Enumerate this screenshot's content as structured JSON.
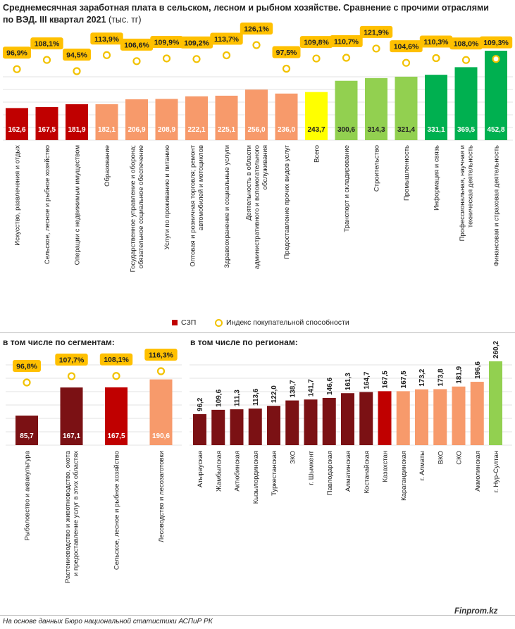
{
  "header": {
    "title": "Среднемесячная заработная плата в сельском, лесном и рыбном хозяйстве. Сравнение с прочими отраслями по ВЭД. III квартал 2021",
    "unit": "(тыс. тг)"
  },
  "legend": {
    "bar_label": "СЗП",
    "index_label": "Индекс покупательной способности"
  },
  "segments_title": "в том числе по сегментам:",
  "regions_title": "в том числе по регионам:",
  "footer": {
    "source": "На основе данных Бюро национальной статистики АСПиР РК",
    "brand": "Finprom.kz"
  },
  "colors": {
    "dark_red": "#7b1114",
    "red": "#c00000",
    "salmon": "#f79a6b",
    "yellow": "#ffff00",
    "light_green": "#92d050",
    "green": "#00b050",
    "badge": "#ffc000",
    "ring": "#f2c200"
  },
  "chart_data": [
    {
      "type": "bar",
      "categories": [
        "Искусство, развлечения и отдых",
        "Сельское, лесное и рыбное хозяйство",
        "Операции с недвижимым имуществом",
        "Образование",
        "Государственное управление и оборона; обязательное социальное обеспечение",
        "Услуги по проживанию и питанию",
        "Оптовая и розничная торговля; ремонт автомобилей и мотоциклов",
        "Здравоохранение и социальные услуги",
        "Деятельность в области административного и вспомогательного обслуживания",
        "Предоставление прочих видов услуг",
        "Всего",
        "Транспорт и складирование",
        "Строительство",
        "Промышленность",
        "Информация и связь",
        "Профессиональная, научная и техническая деятельность",
        "Финансовая и страховая деятельность"
      ],
      "values": [
        162.6,
        167.5,
        181.9,
        182.1,
        206.9,
        208.9,
        222.1,
        225.1,
        256.0,
        236.0,
        243.7,
        300.6,
        314.3,
        321.4,
        331.1,
        369.5,
        452.8
      ],
      "value_labels": [
        "162,6",
        "167,5",
        "181,9",
        "182,1",
        "206,9",
        "208,9",
        "222,1",
        "225,1",
        "256,0",
        "236,0",
        "243,7",
        "300,6",
        "314,3",
        "321,4",
        "331,1",
        "369,5",
        "452,8"
      ],
      "index": [
        96.9,
        108.1,
        94.5,
        113.9,
        106.6,
        109.9,
        109.2,
        113.7,
        126.1,
        97.5,
        109.8,
        110.7,
        121.9,
        104.6,
        110.3,
        108.0,
        109.3
      ],
      "index_labels": [
        "96,9%",
        "108,1%",
        "94,5%",
        "113,9%",
        "106,6%",
        "109,9%",
        "109,2%",
        "113,7%",
        "126,1%",
        "97,5%",
        "109,8%",
        "110,7%",
        "121,9%",
        "104,6%",
        "110,3%",
        "108,0%",
        "109,3%"
      ],
      "bar_colors": [
        "red",
        "red",
        "red",
        "salmon",
        "salmon",
        "salmon",
        "salmon",
        "salmon",
        "salmon",
        "salmon",
        "yellow",
        "light_green",
        "light_green",
        "light_green",
        "green",
        "green",
        "green"
      ],
      "series": [
        {
          "name": "СЗП"
        },
        {
          "name": "Индекс покупательной способности"
        }
      ]
    },
    {
      "type": "bar",
      "categories": [
        "Рыболовство и аквакультура",
        "Растениеводство и животноводство, охота и предоставление услуг в этих областях",
        "Сельское, лесное и рыбное хозяйство",
        "Лесоводство и лесозаготовки"
      ],
      "values": [
        85.7,
        167.1,
        167.5,
        190.6
      ],
      "value_labels": [
        "85,7",
        "167,1",
        "167,5",
        "190,6"
      ],
      "index": [
        96.8,
        107.7,
        108.1,
        116.3
      ],
      "index_labels": [
        "96,8%",
        "107,7%",
        "108,1%",
        "116,3%"
      ],
      "bar_colors": [
        "dark_red",
        "dark_red",
        "red",
        "salmon"
      ]
    },
    {
      "type": "bar",
      "categories": [
        "Атырауская",
        "Жамбылская",
        "Актюбинская",
        "Кызылординская",
        "Туркестанская",
        "ЗКО",
        "г. Шымкент",
        "Павлодарская",
        "Алматинская",
        "Костанайская",
        "Казахстан",
        "Карагандинская",
        "г. Алматы",
        "ВКО",
        "СКО",
        "Акмолинская",
        "г. Нур-Султан"
      ],
      "values": [
        96.2,
        109.6,
        111.3,
        113.6,
        122.0,
        138.7,
        141.7,
        146.6,
        161.3,
        164.7,
        167.5,
        167.5,
        173.2,
        173.8,
        181.9,
        196.6,
        260.2
      ],
      "value_labels": [
        "96,2",
        "109,6",
        "111,3",
        "113,6",
        "122,0",
        "138,7",
        "141,7",
        "146,6",
        "161,3",
        "164,7",
        "167,5",
        "167,5",
        "173,2",
        "173,8",
        "181,9",
        "196,6",
        "260,2"
      ],
      "bar_colors": [
        "dark_red",
        "dark_red",
        "dark_red",
        "dark_red",
        "dark_red",
        "dark_red",
        "dark_red",
        "dark_red",
        "dark_red",
        "dark_red",
        "red",
        "salmon",
        "salmon",
        "salmon",
        "salmon",
        "salmon",
        "light_green"
      ]
    }
  ]
}
